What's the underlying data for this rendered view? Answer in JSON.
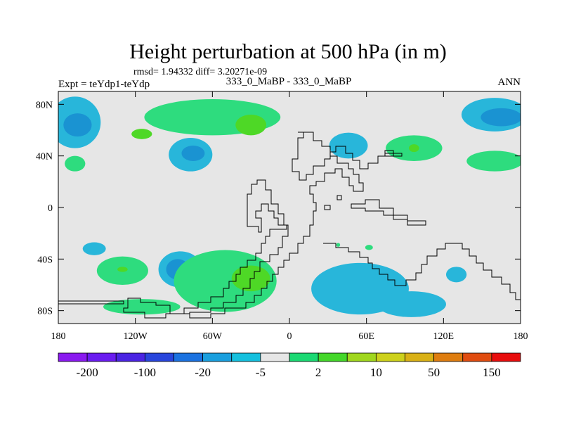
{
  "chart_data": {
    "type": "heatmap",
    "title": "Height perturbation at 500 hPa (in m)",
    "stats_line": "rmsd= 1.94332 diff= 3.20271e-09",
    "left_label": "Expt = teYdp1-teYdp",
    "center_label": "333_0_MaBP - 333_0_MaBP",
    "right_label": "ANN",
    "xlim": [
      -180,
      180
    ],
    "ylim": [
      -90,
      90
    ],
    "x_ticks": [
      {
        "value": -180,
        "label": "180"
      },
      {
        "value": -120,
        "label": "120W"
      },
      {
        "value": -60,
        "label": "60W"
      },
      {
        "value": 0,
        "label": "0"
      },
      {
        "value": 60,
        "label": "60E"
      },
      {
        "value": 120,
        "label": "120E"
      },
      {
        "value": 180,
        "label": "180"
      }
    ],
    "y_ticks": [
      {
        "value": 80,
        "label": "80N"
      },
      {
        "value": 40,
        "label": "40N"
      },
      {
        "value": 0,
        "label": "0"
      },
      {
        "value": -40,
        "label": "40S"
      },
      {
        "value": -80,
        "label": "80S"
      }
    ],
    "colorbar": {
      "colors": [
        "#8a1aef",
        "#6a1cf0",
        "#4a24e3",
        "#2845dc",
        "#1b72e0",
        "#1a9fde",
        "#15c0de",
        "#e6e6e6",
        "#1bd973",
        "#44d72a",
        "#a0d71e",
        "#cdd11c",
        "#d9b116",
        "#de7d10",
        "#e04c10",
        "#e80d0d"
      ],
      "labels": [
        {
          "index": 1,
          "text": "-200"
        },
        {
          "index": 3,
          "text": "-100"
        },
        {
          "index": 5,
          "text": "-20"
        },
        {
          "index": 7,
          "text": "-5"
        },
        {
          "index": 9,
          "text": "2"
        },
        {
          "index": 11,
          "text": "10"
        },
        {
          "index": 13,
          "text": "50"
        },
        {
          "index": 15,
          "text": "150"
        }
      ]
    },
    "regions": [
      {
        "name": "northpac-east-blue",
        "level": -5,
        "color": "#28b6da",
        "cx": -167,
        "cy": 66,
        "rx": 20,
        "ry": 20
      },
      {
        "name": "northpac-east-core",
        "level": -20,
        "color": "#1a93d2",
        "cx": -165,
        "cy": 64,
        "rx": 11,
        "ry": 9
      },
      {
        "name": "northpac-west-blue",
        "level": -5,
        "color": "#28b6da",
        "cx": 160,
        "cy": 72,
        "rx": 26,
        "ry": 13
      },
      {
        "name": "northpac-west-core",
        "level": -20,
        "color": "#1a93d2",
        "cx": 165,
        "cy": 70,
        "rx": 16,
        "ry": 7
      },
      {
        "name": "north-green-arc",
        "level": 2,
        "color": "#2edc7e",
        "cx": -60,
        "cy": 70,
        "rx": 53,
        "ry": 14
      },
      {
        "name": "north-green-core-1",
        "level": 10,
        "color": "#4ed826",
        "cx": -30,
        "cy": 64,
        "rx": 12,
        "ry": 8
      },
      {
        "name": "north-green-core-2",
        "level": 10,
        "color": "#4ed826",
        "cx": -115,
        "cy": 57,
        "rx": 8,
        "ry": 4
      },
      {
        "name": "pac-green-small",
        "level": 2,
        "color": "#2edc7e",
        "cx": -167,
        "cy": 34,
        "rx": 8,
        "ry": 6
      },
      {
        "name": "natl-blue",
        "level": -5,
        "color": "#28b6da",
        "cx": -77,
        "cy": 41,
        "rx": 17,
        "ry": 13
      },
      {
        "name": "natl-blue-core",
        "level": -20,
        "color": "#1a93d2",
        "cx": -75,
        "cy": 42,
        "rx": 9,
        "ry": 6
      },
      {
        "name": "eurasia-blue",
        "level": -5,
        "color": "#28b6da",
        "cx": 46,
        "cy": 48,
        "rx": 15,
        "ry": 10
      },
      {
        "name": "asia-green",
        "level": 2,
        "color": "#2edc7e",
        "cx": 97,
        "cy": 46,
        "rx": 22,
        "ry": 10
      },
      {
        "name": "asia-green-core",
        "level": 10,
        "color": "#4ed826",
        "cx": 97,
        "cy": 46,
        "rx": 4,
        "ry": 3
      },
      {
        "name": "pac-green-east",
        "level": 2,
        "color": "#2edc7e",
        "cx": 160,
        "cy": 36,
        "rx": 22,
        "ry": 8
      },
      {
        "name": "sh-blue-small",
        "level": -5,
        "color": "#28b6da",
        "cx": -152,
        "cy": -32,
        "rx": 9,
        "ry": 5
      },
      {
        "name": "sh-green-left",
        "level": 2,
        "color": "#2edc7e",
        "cx": -130,
        "cy": -49,
        "rx": 20,
        "ry": 11
      },
      {
        "name": "sh-green-left-core",
        "level": 10,
        "color": "#4ed826",
        "cx": -130,
        "cy": -48,
        "rx": 4,
        "ry": 2
      },
      {
        "name": "sh-blue-mid",
        "level": -5,
        "color": "#28b6da",
        "cx": -85,
        "cy": -48,
        "rx": 17,
        "ry": 14
      },
      {
        "name": "sh-blue-mid-core",
        "level": -20,
        "color": "#1a93d2",
        "cx": -87,
        "cy": -48,
        "rx": 9,
        "ry": 8
      },
      {
        "name": "sh-green-big",
        "level": 2,
        "color": "#2edc7e",
        "cx": -50,
        "cy": -57,
        "rx": 40,
        "ry": 24
      },
      {
        "name": "sh-green-big-core",
        "level": 10,
        "color": "#4ed826",
        "cx": -30,
        "cy": -55,
        "rx": 15,
        "ry": 10
      },
      {
        "name": "sh-green-strip",
        "level": 2,
        "color": "#2edc7e",
        "cx": -115,
        "cy": -77,
        "rx": 30,
        "ry": 6
      },
      {
        "name": "sh-blue-east",
        "level": -5,
        "color": "#28b6da",
        "cx": 55,
        "cy": -63,
        "rx": 38,
        "ry": 20
      },
      {
        "name": "sh-blue-east-ext",
        "level": -5,
        "color": "#28b6da",
        "cx": 95,
        "cy": -75,
        "rx": 27,
        "ry": 10
      },
      {
        "name": "sh-blue-far-east",
        "level": -5,
        "color": "#28b6da",
        "cx": 130,
        "cy": -52,
        "rx": 8,
        "ry": 6
      },
      {
        "name": "sh-green-tiny-1",
        "level": 2,
        "color": "#2edc7e",
        "cx": 62,
        "cy": -31,
        "rx": 3,
        "ry": 2
      },
      {
        "name": "sh-green-tiny-2",
        "level": 2,
        "color": "#2edc7e",
        "cx": 38,
        "cy": -29,
        "rx": 1.5,
        "ry": 1.5
      }
    ]
  }
}
